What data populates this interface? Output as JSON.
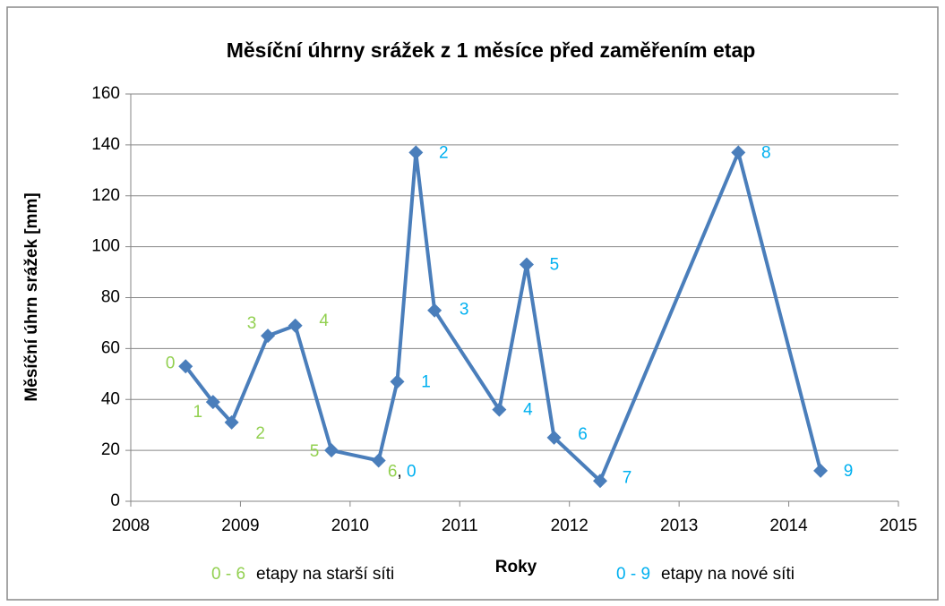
{
  "chart_data": {
    "type": "line",
    "title": "Měsíční úhrny srážek z 1 měsíce před zaměřením etap",
    "xlabel": "Roky",
    "ylabel": "Měsíční úhrn srážek [mm]",
    "x": [
      2008.5,
      2008.75,
      2008.92,
      2009.25,
      2009.5,
      2009.83,
      2010.26,
      2010.43,
      2010.6,
      2010.77,
      2011.36,
      2011.61,
      2011.86,
      2012.28,
      2013.54,
      2014.29
    ],
    "series": [
      {
        "color": "#4a7ebb",
        "values": [
          53,
          39,
          31,
          65,
          69,
          20,
          16,
          47,
          137,
          75,
          36,
          93,
          25,
          8,
          137,
          12
        ]
      }
    ],
    "point_labels": [
      [
        {
          "text": "0",
          "color": "#92d050"
        }
      ],
      [
        {
          "text": "1",
          "color": "#92d050"
        }
      ],
      [
        {
          "text": "2",
          "color": "#92d050"
        }
      ],
      [
        {
          "text": "3",
          "color": "#92d050"
        }
      ],
      [
        {
          "text": "4",
          "color": "#92d050"
        }
      ],
      [
        {
          "text": "5",
          "color": "#92d050"
        }
      ],
      [
        {
          "text": "6",
          "color": "#92d050"
        },
        {
          "text": ",",
          "color": "#000000"
        },
        {
          "text": " 0",
          "color": "#00b0f0"
        }
      ],
      [
        {
          "text": "1",
          "color": "#00b0f0"
        }
      ],
      [
        {
          "text": "2",
          "color": "#00b0f0"
        }
      ],
      [
        {
          "text": "3",
          "color": "#00b0f0"
        }
      ],
      [
        {
          "text": "4",
          "color": "#00b0f0"
        }
      ],
      [
        {
          "text": "5",
          "color": "#00b0f0"
        }
      ],
      [
        {
          "text": "6",
          "color": "#00b0f0"
        }
      ],
      [
        {
          "text": "7",
          "color": "#00b0f0"
        }
      ],
      [
        {
          "text": "8",
          "color": "#00b0f0"
        }
      ],
      [
        {
          "text": "9",
          "color": "#00b0f0"
        }
      ]
    ],
    "legend": [
      {
        "range": "0 - 6",
        "color": "#92d050",
        "text": "etapy na starší síti"
      },
      {
        "range": "0 - 9",
        "color": "#00b0f0",
        "text": "etapy na nové síti"
      }
    ],
    "xlim": [
      2008,
      2015
    ],
    "xticks": [
      2008,
      2009,
      2010,
      2011,
      2012,
      2013,
      2014,
      2015
    ],
    "ylim": [
      0,
      160
    ],
    "yticks": [
      0,
      20,
      40,
      60,
      80,
      100,
      120,
      140,
      160
    ],
    "grid": true
  }
}
